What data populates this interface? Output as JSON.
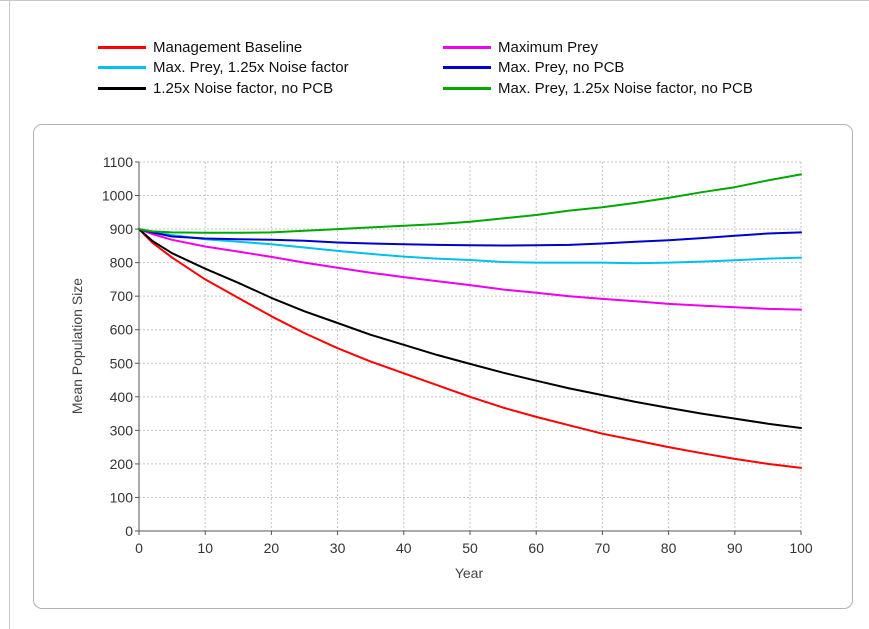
{
  "chart_data": {
    "type": "line",
    "title": "",
    "xlabel": "Year",
    "ylabel": "Mean Population Size",
    "xlim": [
      0,
      100
    ],
    "ylim": [
      0,
      1100
    ],
    "xticks": [
      0,
      10,
      20,
      30,
      40,
      50,
      60,
      70,
      80,
      90,
      100
    ],
    "yticks": [
      0,
      100,
      200,
      300,
      400,
      500,
      600,
      700,
      800,
      900,
      1000,
      1100
    ],
    "grid": true,
    "legend_position": "top",
    "x": [
      0,
      2,
      5,
      10,
      15,
      20,
      25,
      30,
      35,
      40,
      45,
      50,
      55,
      60,
      65,
      70,
      75,
      80,
      85,
      90,
      95,
      100
    ],
    "series": [
      {
        "name": "Management Baseline",
        "color": "#ff0000",
        "values": [
          900,
          860,
          815,
          750,
          695,
          640,
          590,
          545,
          505,
          470,
          435,
          400,
          368,
          340,
          315,
          290,
          270,
          250,
          232,
          215,
          200,
          188
        ]
      },
      {
        "name": "Maximum Prey",
        "color": "#ee00ee",
        "values": [
          900,
          885,
          868,
          848,
          833,
          817,
          800,
          785,
          770,
          757,
          745,
          733,
          720,
          710,
          700,
          692,
          685,
          677,
          672,
          667,
          662,
          660
        ]
      },
      {
        "name": "Max. Prey, 1.25x Noise factor",
        "color": "#00c0ee",
        "values": [
          900,
          892,
          882,
          870,
          862,
          855,
          845,
          835,
          826,
          818,
          812,
          808,
          802,
          800,
          800,
          800,
          798,
          800,
          803,
          807,
          812,
          815
        ]
      },
      {
        "name": "Max. Prey, no PCB",
        "color": "#0000cc",
        "values": [
          900,
          890,
          878,
          872,
          870,
          868,
          865,
          860,
          857,
          855,
          853,
          852,
          851,
          852,
          853,
          857,
          862,
          867,
          873,
          880,
          887,
          890
        ]
      },
      {
        "name": "1.25x Noise factor, no PCB",
        "color": "#000000",
        "values": [
          900,
          865,
          828,
          782,
          740,
          695,
          655,
          620,
          585,
          555,
          525,
          498,
          472,
          448,
          425,
          405,
          385,
          367,
          350,
          335,
          320,
          307
        ]
      },
      {
        "name": "Max. Prey, 1.25x Noise factor, no PCB",
        "color": "#00a800",
        "values": [
          900,
          893,
          890,
          889,
          889,
          890,
          895,
          900,
          905,
          910,
          915,
          922,
          932,
          942,
          955,
          965,
          978,
          993,
          1010,
          1025,
          1045,
          1063
        ]
      }
    ]
  }
}
